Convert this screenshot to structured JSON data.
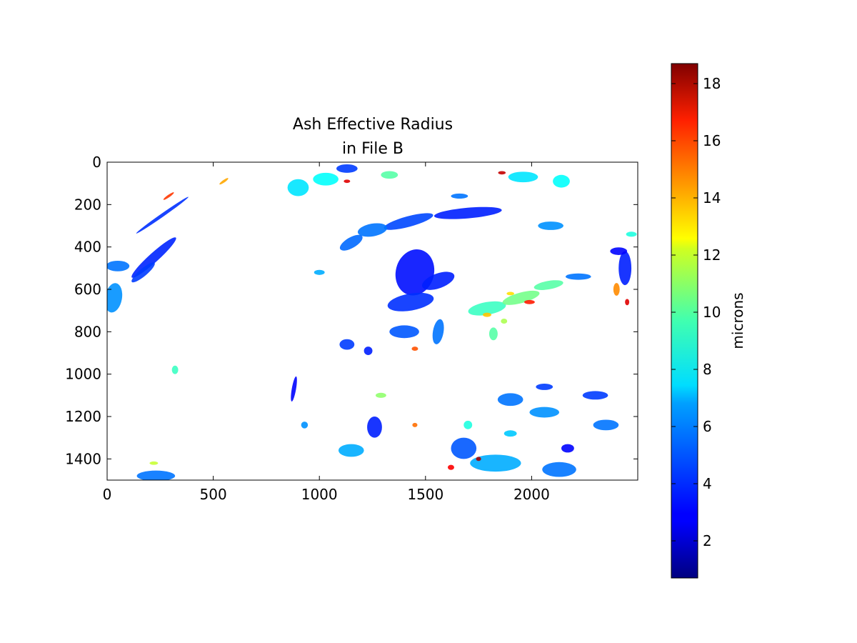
{
  "chart_data": {
    "type": "heatmap",
    "title_lines": [
      "Ash Effective Radius",
      "in File B"
    ],
    "xlim": [
      0,
      2500
    ],
    "ylim": [
      1500,
      0
    ],
    "x_ticks": [
      0,
      500,
      1000,
      1500,
      2000
    ],
    "y_ticks": [
      0,
      200,
      400,
      600,
      800,
      1000,
      1200,
      1400
    ],
    "x_tick_labels": [
      "0",
      "500",
      "1000",
      "1500",
      "2000"
    ],
    "y_tick_labels": [
      "0",
      "200",
      "400",
      "600",
      "800",
      "1000",
      "1200",
      "1400"
    ],
    "colorbar": {
      "label": "microns",
      "range": [
        0.7,
        18.7
      ],
      "ticks": [
        2,
        4,
        6,
        8,
        10,
        12,
        14,
        16,
        18
      ],
      "tick_labels": [
        "2",
        "4",
        "6",
        "8",
        "10",
        "12",
        "14",
        "16",
        "18"
      ],
      "colormap": "jet"
    },
    "field_patches": [
      {
        "x": 50,
        "y": 490,
        "rx": 55,
        "ry": 25,
        "rot": 0,
        "v": 5.0
      },
      {
        "x": 220,
        "y": 450,
        "rx": 140,
        "ry": 22,
        "rot": -42,
        "v": 3.6
      },
      {
        "x": 170,
        "y": 520,
        "rx": 70,
        "ry": 18,
        "rot": -40,
        "v": 4.0
      },
      {
        "x": 260,
        "y": 250,
        "rx": 150,
        "ry": 8,
        "rot": -35,
        "v": 3.8
      },
      {
        "x": 30,
        "y": 640,
        "rx": 40,
        "ry": 70,
        "rot": 10,
        "v": 5.5
      },
      {
        "x": 1450,
        "y": 520,
        "rx": 90,
        "ry": 110,
        "rot": 15,
        "v": 3.2
      },
      {
        "x": 1430,
        "y": 660,
        "rx": 110,
        "ry": 40,
        "rot": -10,
        "v": 3.8
      },
      {
        "x": 1560,
        "y": 560,
        "rx": 80,
        "ry": 35,
        "rot": -20,
        "v": 3.5
      },
      {
        "x": 1400,
        "y": 800,
        "rx": 70,
        "ry": 30,
        "rot": 0,
        "v": 4.5
      },
      {
        "x": 1560,
        "y": 800,
        "rx": 25,
        "ry": 60,
        "rot": 10,
        "v": 5.0
      },
      {
        "x": 1700,
        "y": 240,
        "rx": 160,
        "ry": 25,
        "rot": -5,
        "v": 3.5
      },
      {
        "x": 1420,
        "y": 280,
        "rx": 120,
        "ry": 25,
        "rot": -15,
        "v": 4.2
      },
      {
        "x": 1250,
        "y": 320,
        "rx": 70,
        "ry": 30,
        "rot": -10,
        "v": 5.0
      },
      {
        "x": 1150,
        "y": 380,
        "rx": 60,
        "ry": 25,
        "rot": -30,
        "v": 4.8
      },
      {
        "x": 1790,
        "y": 690,
        "rx": 90,
        "ry": 30,
        "rot": -10,
        "v": 8.5
      },
      {
        "x": 1950,
        "y": 640,
        "rx": 90,
        "ry": 25,
        "rot": -15,
        "v": 9.5
      },
      {
        "x": 2080,
        "y": 580,
        "rx": 70,
        "ry": 20,
        "rot": -10,
        "v": 9.0
      },
      {
        "x": 2220,
        "y": 540,
        "rx": 60,
        "ry": 15,
        "rot": 0,
        "v": 5.0
      },
      {
        "x": 2440,
        "y": 500,
        "rx": 30,
        "ry": 80,
        "rot": 0,
        "v": 3.5
      },
      {
        "x": 2410,
        "y": 420,
        "rx": 40,
        "ry": 18,
        "rot": 0,
        "v": 3.0
      },
      {
        "x": 2470,
        "y": 340,
        "rx": 25,
        "ry": 12,
        "rot": 0,
        "v": 8.0
      },
      {
        "x": 900,
        "y": 120,
        "rx": 50,
        "ry": 40,
        "rot": 0,
        "v": 7.0
      },
      {
        "x": 1030,
        "y": 80,
        "rx": 60,
        "ry": 30,
        "rot": 0,
        "v": 7.5
      },
      {
        "x": 1130,
        "y": 30,
        "rx": 50,
        "ry": 20,
        "rot": 0,
        "v": 4.0
      },
      {
        "x": 1330,
        "y": 60,
        "rx": 40,
        "ry": 18,
        "rot": 0,
        "v": 9.0
      },
      {
        "x": 1960,
        "y": 70,
        "rx": 70,
        "ry": 25,
        "rot": 0,
        "v": 7.0
      },
      {
        "x": 2140,
        "y": 90,
        "rx": 40,
        "ry": 30,
        "rot": 0,
        "v": 7.5
      },
      {
        "x": 2090,
        "y": 300,
        "rx": 60,
        "ry": 20,
        "rot": 0,
        "v": 5.5
      },
      {
        "x": 1830,
        "y": 1420,
        "rx": 120,
        "ry": 40,
        "rot": 0,
        "v": 6.0
      },
      {
        "x": 2130,
        "y": 1450,
        "rx": 80,
        "ry": 35,
        "rot": 0,
        "v": 5.0
      },
      {
        "x": 2170,
        "y": 1350,
        "rx": 30,
        "ry": 20,
        "rot": 0,
        "v": 3.0
      },
      {
        "x": 1680,
        "y": 1350,
        "rx": 60,
        "ry": 50,
        "rot": 0,
        "v": 4.5
      },
      {
        "x": 1260,
        "y": 1250,
        "rx": 35,
        "ry": 50,
        "rot": 0,
        "v": 3.5
      },
      {
        "x": 1150,
        "y": 1360,
        "rx": 60,
        "ry": 30,
        "rot": 0,
        "v": 6.0
      },
      {
        "x": 1900,
        "y": 1120,
        "rx": 60,
        "ry": 30,
        "rot": 0,
        "v": 5.0
      },
      {
        "x": 2060,
        "y": 1060,
        "rx": 40,
        "ry": 15,
        "rot": 0,
        "v": 4.0
      },
      {
        "x": 2060,
        "y": 1180,
        "rx": 70,
        "ry": 25,
        "rot": 0,
        "v": 5.5
      },
      {
        "x": 2300,
        "y": 1100,
        "rx": 60,
        "ry": 20,
        "rot": 0,
        "v": 4.0
      },
      {
        "x": 2350,
        "y": 1240,
        "rx": 60,
        "ry": 25,
        "rot": 0,
        "v": 5.0
      },
      {
        "x": 230,
        "y": 1480,
        "rx": 90,
        "ry": 25,
        "rot": 0,
        "v": 5.0
      },
      {
        "x": 1130,
        "y": 860,
        "rx": 35,
        "ry": 25,
        "rot": 0,
        "v": 4.0
      },
      {
        "x": 1230,
        "y": 890,
        "rx": 20,
        "ry": 20,
        "rot": 0,
        "v": 3.5
      },
      {
        "x": 880,
        "y": 1070,
        "rx": 10,
        "ry": 60,
        "rot": 10,
        "v": 3.0
      },
      {
        "x": 930,
        "y": 1240,
        "rx": 16,
        "ry": 16,
        "rot": 0,
        "v": 5.5
      },
      {
        "x": 1000,
        "y": 520,
        "rx": 25,
        "ry": 12,
        "rot": 0,
        "v": 6.0
      },
      {
        "x": 1660,
        "y": 160,
        "rx": 40,
        "ry": 12,
        "rot": 0,
        "v": 5.0
      },
      {
        "x": 1700,
        "y": 1240,
        "rx": 20,
        "ry": 20,
        "rot": 0,
        "v": 8.0
      },
      {
        "x": 1900,
        "y": 1280,
        "rx": 30,
        "ry": 15,
        "rot": 0,
        "v": 6.5
      },
      {
        "x": 2400,
        "y": 600,
        "rx": 15,
        "ry": 30,
        "rot": 0,
        "v": 14.0
      },
      {
        "x": 1820,
        "y": 810,
        "rx": 20,
        "ry": 30,
        "rot": 0,
        "v": 9.0
      },
      {
        "x": 1870,
        "y": 750,
        "rx": 15,
        "ry": 12,
        "rot": 0,
        "v": 10.5
      },
      {
        "x": 1990,
        "y": 660,
        "rx": 25,
        "ry": 10,
        "rot": 0,
        "v": 16.0
      },
      {
        "x": 1900,
        "y": 620,
        "rx": 18,
        "ry": 8,
        "rot": 0,
        "v": 12.5
      },
      {
        "x": 290,
        "y": 160,
        "rx": 30,
        "ry": 6,
        "rot": -35,
        "v": 15.5
      },
      {
        "x": 550,
        "y": 90,
        "rx": 25,
        "ry": 6,
        "rot": -35,
        "v": 13.5
      },
      {
        "x": 1130,
        "y": 90,
        "rx": 15,
        "ry": 8,
        "rot": 0,
        "v": 17.0
      },
      {
        "x": 1860,
        "y": 50,
        "rx": 18,
        "ry": 8,
        "rot": 0,
        "v": 17.5
      },
      {
        "x": 1620,
        "y": 1440,
        "rx": 15,
        "ry": 12,
        "rot": 0,
        "v": 16.5
      },
      {
        "x": 1750,
        "y": 1400,
        "rx": 12,
        "ry": 10,
        "rot": 0,
        "v": 18.0
      },
      {
        "x": 1450,
        "y": 1240,
        "rx": 12,
        "ry": 10,
        "rot": 0,
        "v": 14.5
      },
      {
        "x": 1450,
        "y": 880,
        "rx": 15,
        "ry": 10,
        "rot": 0,
        "v": 15.0
      },
      {
        "x": 1790,
        "y": 720,
        "rx": 20,
        "ry": 10,
        "rot": 0,
        "v": 13.0
      },
      {
        "x": 2450,
        "y": 660,
        "rx": 10,
        "ry": 15,
        "rot": 0,
        "v": 17.0
      },
      {
        "x": 320,
        "y": 980,
        "rx": 15,
        "ry": 20,
        "rot": 0,
        "v": 8.5
      },
      {
        "x": 220,
        "y": 1420,
        "rx": 20,
        "ry": 8,
        "rot": 0,
        "v": 11.0
      },
      {
        "x": 1290,
        "y": 1100,
        "rx": 25,
        "ry": 12,
        "rot": 0,
        "v": 10.0
      }
    ]
  }
}
